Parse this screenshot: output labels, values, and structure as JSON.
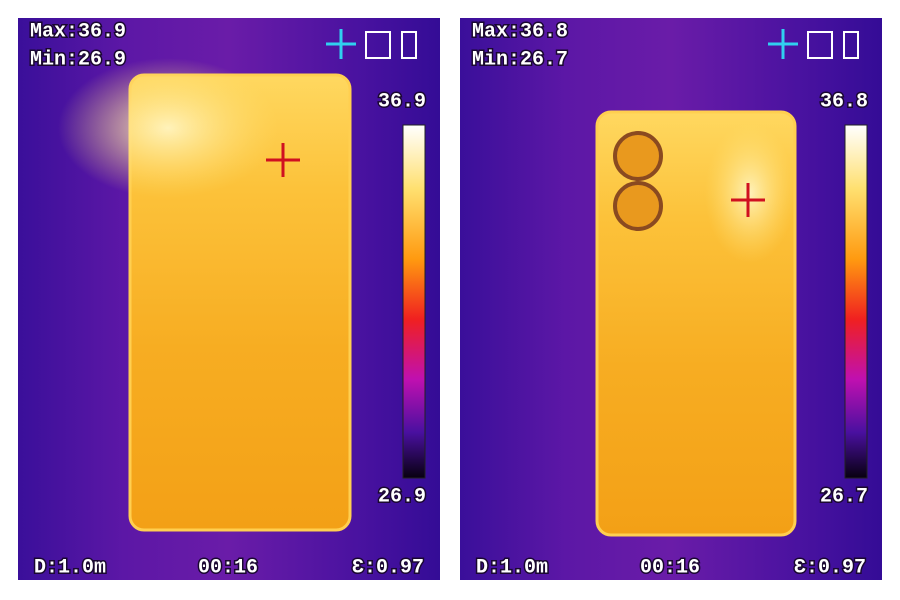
{
  "panels": [
    {
      "max": "Max:36.9",
      "min": "Min:26.9",
      "scale_max": "36.9",
      "scale_min": "26.9",
      "distance": "D:1.0m",
      "time": "00:16",
      "emissivity": "Ɛ:0.97"
    },
    {
      "max": "Max:36.8",
      "min": "Min:26.7",
      "scale_max": "36.8",
      "scale_min": "26.7",
      "distance": "D:1.0m",
      "time": "00:16",
      "emissivity": "Ɛ:0.97"
    }
  ]
}
